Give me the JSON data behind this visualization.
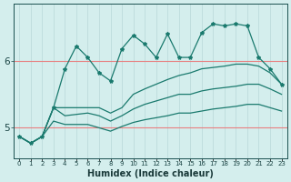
{
  "xlabel": "Humidex (Indice chaleur)",
  "x_values": [
    0,
    1,
    2,
    3,
    4,
    5,
    6,
    7,
    8,
    9,
    10,
    11,
    12,
    13,
    14,
    15,
    16,
    17,
    18,
    19,
    20,
    21,
    22,
    23
  ],
  "line_color": "#1a7a6e",
  "bg_color": "#d4eeed",
  "grid_color_h": "#e88080",
  "grid_color_v": "#b8d8d8",
  "series_spiky": [
    4.87,
    4.77,
    4.87,
    5.3,
    5.88,
    6.22,
    6.05,
    5.82,
    5.7,
    6.18,
    6.38,
    6.25,
    6.05,
    6.4,
    6.05,
    6.05,
    6.42,
    6.55,
    6.52,
    6.55,
    6.52,
    6.05,
    5.88,
    5.65
  ],
  "series_upper": [
    4.87,
    4.77,
    4.87,
    5.3,
    5.3,
    5.3,
    5.3,
    5.3,
    5.22,
    5.3,
    5.5,
    5.58,
    5.65,
    5.72,
    5.78,
    5.82,
    5.88,
    5.9,
    5.92,
    5.95,
    5.95,
    5.92,
    5.82,
    5.65
  ],
  "series_mid": [
    4.87,
    4.77,
    4.87,
    5.3,
    5.18,
    5.2,
    5.22,
    5.18,
    5.1,
    5.18,
    5.28,
    5.35,
    5.4,
    5.45,
    5.5,
    5.5,
    5.55,
    5.58,
    5.6,
    5.62,
    5.65,
    5.65,
    5.58,
    5.5
  ],
  "series_lower": [
    4.87,
    4.77,
    4.87,
    5.1,
    5.05,
    5.05,
    5.05,
    5.0,
    4.95,
    5.02,
    5.08,
    5.12,
    5.15,
    5.18,
    5.22,
    5.22,
    5.25,
    5.28,
    5.3,
    5.32,
    5.35,
    5.35,
    5.3,
    5.25
  ],
  "yticks": [
    5,
    6
  ],
  "ylim": [
    4.55,
    6.85
  ],
  "xlim": [
    -0.5,
    23.5
  ]
}
